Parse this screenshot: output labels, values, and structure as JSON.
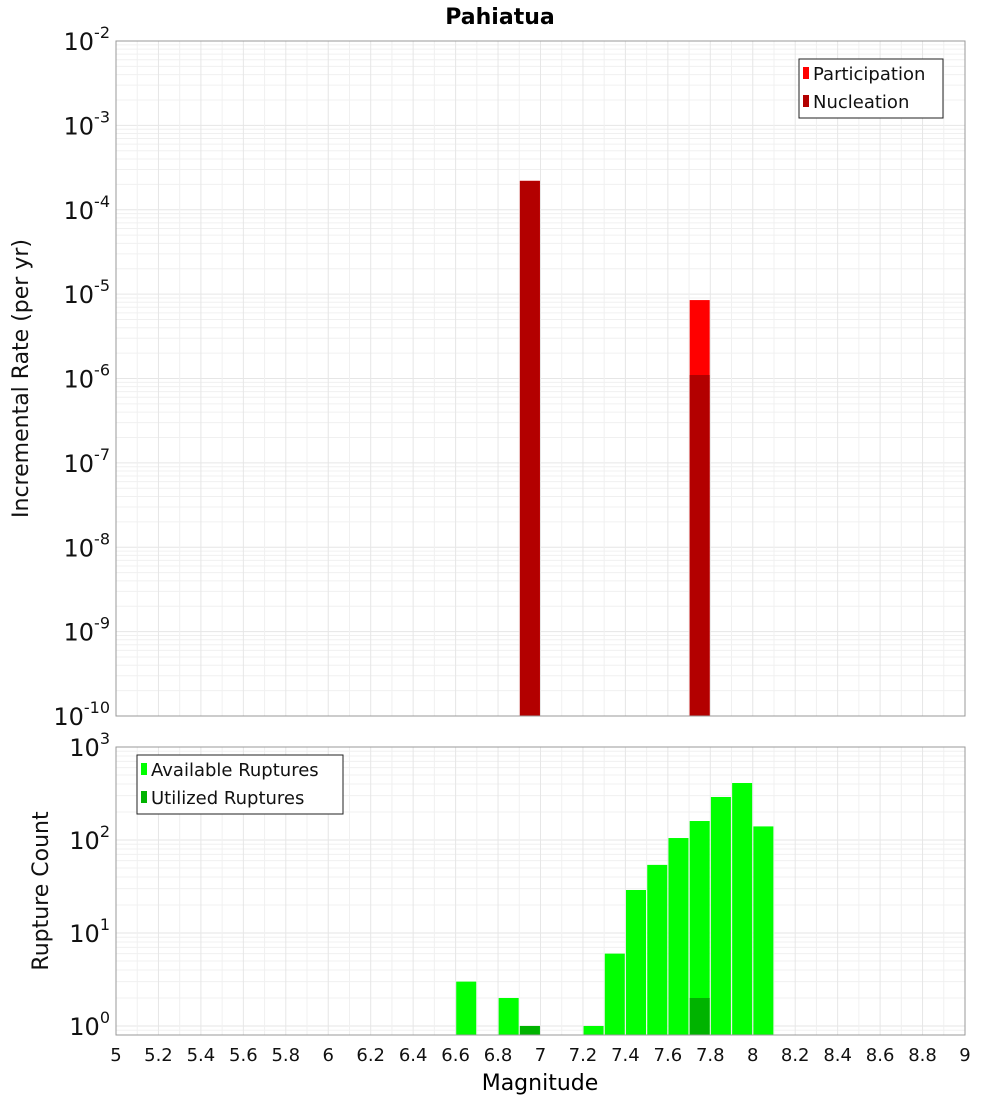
{
  "chart_data": {
    "title": "Pahiatua",
    "xlabel": "Magnitude",
    "xlim": [
      5,
      9
    ],
    "x_ticks": [
      "5",
      "5.2",
      "5.4",
      "5.6",
      "5.8",
      "6",
      "6.2",
      "6.4",
      "6.6",
      "6.8",
      "7",
      "7.2",
      "7.4",
      "7.6",
      "7.8",
      "8",
      "8.2",
      "8.4",
      "8.6",
      "8.8",
      "9"
    ],
    "grid": true,
    "panels": [
      {
        "type": "bar",
        "scale": "log",
        "ylabel": "Incremental Rate (per yr)",
        "ylim": [
          1e-10,
          0.01
        ],
        "y_ticks": [
          {
            "base": "10",
            "exp": "-2"
          },
          {
            "base": "10",
            "exp": "-3"
          },
          {
            "base": "10",
            "exp": "-4"
          },
          {
            "base": "10",
            "exp": "-5"
          },
          {
            "base": "10",
            "exp": "-6"
          },
          {
            "base": "10",
            "exp": "-7"
          },
          {
            "base": "10",
            "exp": "-8"
          },
          {
            "base": "10",
            "exp": "-9"
          },
          {
            "base": "10",
            "exp": "-10"
          }
        ],
        "legend_position": "top-right",
        "series": [
          {
            "name": "Participation",
            "color": "#ff0000",
            "x": [
              6.95,
              7.75
            ],
            "values": [
              0.00022,
              8.5e-06
            ]
          },
          {
            "name": "Nucleation",
            "color": "#b30000",
            "x": [
              6.95,
              7.75
            ],
            "values": [
              0.00022,
              1.1e-06
            ]
          }
        ]
      },
      {
        "type": "bar",
        "scale": "log",
        "ylabel": "Rupture Count",
        "ylim": [
          0.8,
          1000
        ],
        "y_ticks": [
          {
            "base": "10",
            "exp": "3"
          },
          {
            "base": "10",
            "exp": "2"
          },
          {
            "base": "10",
            "exp": "1"
          },
          {
            "base": "10",
            "exp": "0"
          }
        ],
        "legend_position": "top-left",
        "series": [
          {
            "name": "Available Ruptures",
            "color": "#00ff00",
            "x": [
              6.65,
              6.85,
              6.95,
              7.25,
              7.35,
              7.45,
              7.55,
              7.65,
              7.75,
              7.85,
              7.95,
              8.05
            ],
            "values": [
              3,
              2,
              1,
              1,
              6,
              29,
              54,
              105,
              160,
              290,
              410,
              140
            ]
          },
          {
            "name": "Utilized Ruptures",
            "color": "#00b300",
            "x": [
              6.95,
              7.75
            ],
            "values": [
              1,
              2
            ]
          }
        ]
      }
    ]
  }
}
